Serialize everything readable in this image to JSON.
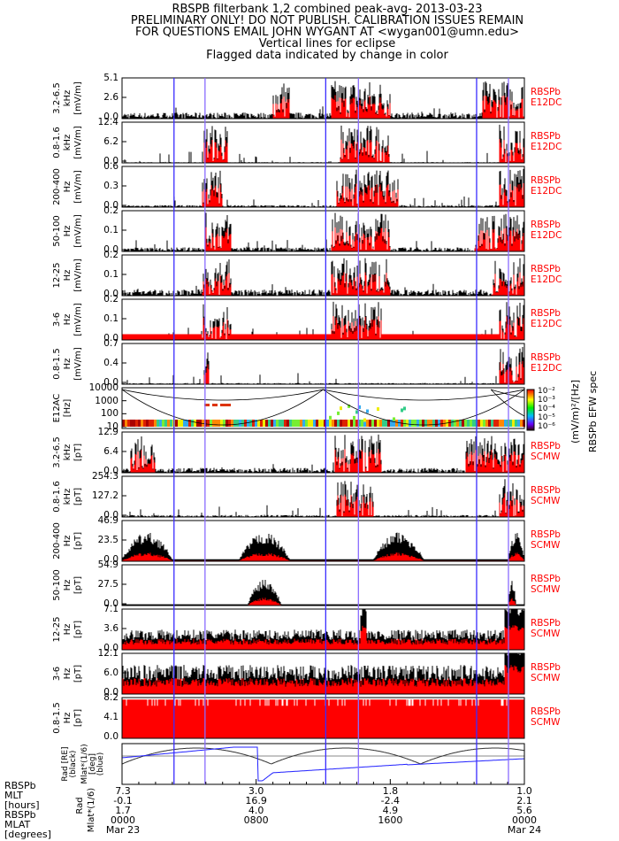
{
  "header": {
    "lines": [
      "RBSPB filterbank 1,2 combined peak-avg- 2013-03-23",
      "PRELIMINARY ONLY! DO NOT PUBLISH. CALIBRATION ISSUES REMAIN",
      "FOR QUESTIONS EMAIL JOHN WYGANT AT <wygan001@umn.edu>",
      "Vertical lines for eclipse",
      "Flagged data indicated by change in color"
    ]
  },
  "colors": {
    "trace": "#000000",
    "flag": "#ff0000",
    "eclipse": "#3a2cff",
    "inst": "#ff0000"
  },
  "chart_data": {
    "type": "line",
    "x_range_hours": [
      0,
      24
    ],
    "eclipse_lines_hours": [
      3.1,
      4.95,
      12.15,
      14.1,
      21.15,
      23.05
    ],
    "panels": [
      {
        "band": "3.2-6.5",
        "unit1": "kHz",
        "unit2": "[mV/m]",
        "ticks": [
          "5.1",
          "2.6",
          "0.0"
        ],
        "inst": [
          "RBSPb",
          "E12DC"
        ],
        "active": [
          [
            9,
            10
          ],
          [
            12.5,
            16
          ],
          [
            21.5,
            24
          ]
        ],
        "kind": "burst",
        "base": 0.15
      },
      {
        "band": "0.8-1.6",
        "unit1": "kHz",
        "unit2": "[mV/m]",
        "ticks": [
          "12.4",
          "6.2",
          "0.0"
        ],
        "inst": [
          "RBSPb",
          "E12DC"
        ],
        "active": [
          [
            4.9,
            6.3
          ],
          [
            13,
            16
          ],
          [
            22.5,
            24
          ]
        ],
        "kind": "burst",
        "base": 0.02
      },
      {
        "band": "200-400",
        "unit1": "Hz",
        "unit2": "[mV/m]",
        "ticks": [
          "0.6",
          "0.3",
          "0.0"
        ],
        "inst": [
          "RBSPb",
          "E12DC"
        ],
        "active": [
          [
            4.8,
            6
          ],
          [
            12.8,
            16.5
          ],
          [
            22.5,
            24
          ]
        ],
        "kind": "burst",
        "base": 0.05
      },
      {
        "band": "50-100",
        "unit1": "Hz",
        "unit2": "[mV/m]",
        "ticks": [
          "0.2",
          "0.1",
          "0.0"
        ],
        "inst": [
          "RBSPb",
          "E12DC"
        ],
        "active": [
          [
            5,
            6.5
          ],
          [
            12.5,
            16
          ],
          [
            21,
            24
          ]
        ],
        "kind": "burst",
        "base": 0.1
      },
      {
        "band": "12-25",
        "unit1": "Hz",
        "unit2": "[mV/m]",
        "ticks": [
          "0.2",
          "0.1",
          "0.0"
        ],
        "inst": [
          "RBSPb",
          "E12DC"
        ],
        "active": [
          [
            4.8,
            6.5
          ],
          [
            12.5,
            16
          ],
          [
            22,
            24
          ]
        ],
        "kind": "burst",
        "base": 0.15
      },
      {
        "band": "3-6",
        "unit1": "Hz",
        "unit2": "[mV/m]",
        "ticks": [
          "0.2",
          "0.1",
          "0.0"
        ],
        "inst": [
          "RBSPb",
          "E12DC"
        ],
        "active": [
          [
            4.8,
            6.5
          ],
          [
            12.5,
            15.5
          ],
          [
            22.5,
            24
          ]
        ],
        "kind": "redbase",
        "base": 0.1
      },
      {
        "band": "0.8-1.5",
        "unit1": "Hz",
        "unit2": "[mV/m]",
        "ticks": [
          "0.7",
          "0.4",
          "0.0"
        ],
        "inst": [
          "RBSPb",
          "E12DC"
        ],
        "active": [
          [
            4.9,
            5.2
          ],
          [
            22.5,
            24
          ]
        ],
        "kind": "burst",
        "base": 0.03
      },
      {
        "band": "E12AC",
        "unit1": "[Hz]",
        "unit2": "",
        "ticks": [
          "10000",
          "1000",
          "100",
          "10"
        ],
        "inst": [],
        "kind": "spec"
      },
      {
        "band": "3.2-6.5",
        "unit1": "kHz",
        "unit2": "[pT]",
        "ticks": [
          "12.9",
          "6.4",
          "0.0"
        ],
        "inst": [
          "RBSPb",
          "SCMW"
        ],
        "active": [
          [
            0.5,
            2
          ],
          [
            12.7,
            15.5
          ],
          [
            20.5,
            24
          ]
        ],
        "kind": "burst",
        "base": 0.12
      },
      {
        "band": "0.8-1.6",
        "unit1": "kHz",
        "unit2": "[pT]",
        "ticks": [
          "254.3",
          "127.2",
          "0.0"
        ],
        "inst": [
          "RBSPb",
          "SCMW"
        ],
        "active": [
          [
            12.8,
            15
          ],
          [
            22.5,
            24
          ]
        ],
        "kind": "burst",
        "base": 0.05
      },
      {
        "band": "200-400",
        "unit1": "Hz",
        "unit2": "[pT]",
        "ticks": [
          "46.9",
          "23.5",
          "0.0"
        ],
        "inst": [
          "RBSPb",
          "SCMW"
        ],
        "active": [
          [
            0,
            3
          ],
          [
            7,
            10
          ],
          [
            15,
            18
          ],
          [
            23,
            24
          ]
        ],
        "kind": "hump",
        "base": 0.05
      },
      {
        "band": "50-100",
        "unit1": "Hz",
        "unit2": "[pT]",
        "ticks": [
          "54.9",
          "27.5",
          "0.0"
        ],
        "inst": [
          "RBSPb",
          "SCMW"
        ],
        "active": [
          [
            7.5,
            9.5
          ],
          [
            23,
            23.5
          ]
        ],
        "kind": "hump",
        "base": 0.03
      },
      {
        "band": "12-25",
        "unit1": "Hz",
        "unit2": "[pT]",
        "ticks": [
          "7.1",
          "3.6",
          "0.0"
        ],
        "inst": [
          "RBSPb",
          "SCMW"
        ],
        "active": [
          [
            14.2,
            14.6
          ],
          [
            22.8,
            24
          ]
        ],
        "kind": "noise",
        "base": 0.45
      },
      {
        "band": "3-6",
        "unit1": "Hz",
        "unit2": "[pT]",
        "ticks": [
          "12.1",
          "6.0",
          "0.0"
        ],
        "inst": [
          "RBSPb",
          "SCMW"
        ],
        "active": [
          [
            22.8,
            24
          ]
        ],
        "kind": "noise",
        "base": 0.65
      },
      {
        "band": "0.8-1.5",
        "unit1": "Hz",
        "unit2": "[pT]",
        "ticks": [
          "8.2",
          "4.1",
          "0.0"
        ],
        "inst": [
          "RBSPb",
          "SCMW"
        ],
        "active": [],
        "kind": "full",
        "base": 0.9
      }
    ],
    "ephemeris": {
      "ylabel": [
        "Rad [RE] (black)",
        "Mlat*(1/6) [deg] (blue)"
      ]
    },
    "colorbar": {
      "ticks": [
        "10⁻²",
        "10⁻³",
        "10⁻⁴",
        "10⁻⁵",
        "10⁻⁶"
      ],
      "label": "(mV/m)²/[Hz]",
      "title": "RBSPb EFW spec"
    }
  },
  "xaxis": {
    "row_labels": [
      "RBSPb",
      "MLT",
      "[hours]",
      "RBSPb",
      "MLAT",
      "[degrees]"
    ],
    "side_labels": [
      "Rad",
      "Mlat*(1/6)"
    ],
    "columns": [
      {
        "rad": "7.3",
        "mlt": "-0.1",
        "mlat": "1.7",
        "time": "0000",
        "date": "Mar 23"
      },
      {
        "rad": "3.0",
        "mlt": "16.9",
        "mlat": "4.0",
        "time": "0800",
        "date": ""
      },
      {
        "rad": "1.8",
        "mlt": "-2.4",
        "mlat": "4.9",
        "time": "1600",
        "date": ""
      },
      {
        "rad": "1.0",
        "mlt": "2.1",
        "mlat": "5.6",
        "time": "0000",
        "date": "Mar 24"
      }
    ]
  }
}
